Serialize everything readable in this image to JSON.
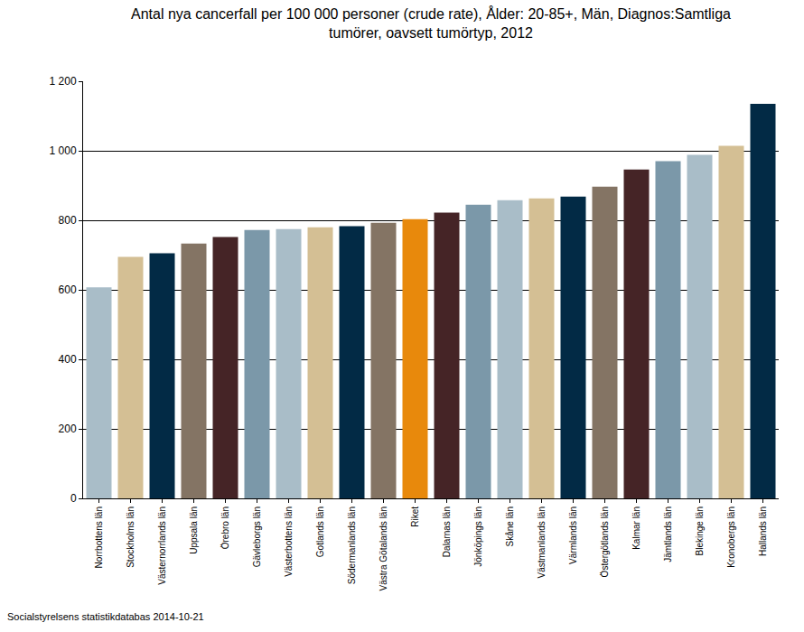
{
  "chart_data": {
    "type": "bar",
    "title": "Antal nya cancerfall per 100 000 personer (crude rate), Ålder: 20-85+, Män, Diagnos:Samtliga tumörer, oavsett tumörtyp, 2012",
    "source": "Socialstyrelsens statistikdatabas 2014-10-21",
    "categories": [
      "Norrbottens län",
      "Stockholms län",
      "Västernorrlands län",
      "Uppsala län",
      "Örebro län",
      "Gävleborgs län",
      "Västerbottens län",
      "Gotlands län",
      "Södermanlands län",
      "Västra Götalands län",
      "Riket",
      "Dalarnas län",
      "Jönköpings län",
      "Skåne län",
      "Västmanlands län",
      "Värmlands län",
      "Östergötlands län",
      "Kalmar län",
      "Jämtlands län",
      "Blekinge län",
      "Kronobergs län",
      "Hallands län"
    ],
    "values": [
      607,
      695,
      705,
      733,
      752,
      772,
      775,
      780,
      783,
      793,
      803,
      822,
      845,
      858,
      863,
      868,
      897,
      946,
      970,
      988,
      1014,
      1135
    ],
    "colors": [
      "#a9bdc8",
      "#d4bf94",
      "#022a45",
      "#847464",
      "#452426",
      "#7b98a9",
      "#a9bdc8",
      "#d4bf94",
      "#022a45",
      "#847464",
      "#e8890c",
      "#452426",
      "#7b98a9",
      "#a9bdc8",
      "#d4bf94",
      "#022a45",
      "#847464",
      "#452426",
      "#7b98a9",
      "#a9bdc8",
      "#d4bf94",
      "#022a45"
    ],
    "ylim": [
      0,
      1200
    ],
    "yticks": [
      0,
      200,
      400,
      600,
      800,
      {
        "value": 1000,
        "label": "1 000"
      },
      {
        "value": 1200,
        "label": "1 200"
      }
    ],
    "grid": true
  }
}
